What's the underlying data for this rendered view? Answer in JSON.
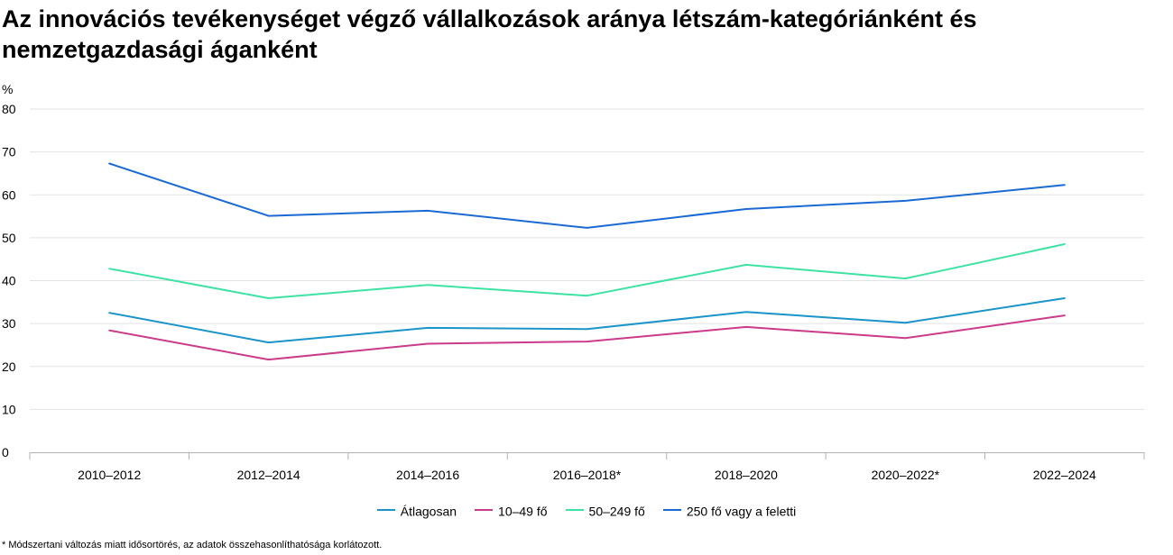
{
  "title": "Az innovációs tevékenységet végző vállalkozások aránya létszám-kategóriánként és nemzetgazdasági áganként",
  "footnote": "* Módszertani változás miatt idősortörés, az adatok összehasonlíthatósága korlátozott.",
  "chart_data": {
    "type": "line",
    "title": "Az innovációs tevékenységet végző vállalkozások aránya létszám-kategóriánként és nemzetgazdasági áganként",
    "xlabel": "",
    "ylabel": "%",
    "ylim": [
      0,
      80
    ],
    "yticks": [
      0,
      10,
      20,
      30,
      40,
      50,
      60,
      70,
      80
    ],
    "grid": true,
    "legend_position": "bottom",
    "categories": [
      "2010–2012",
      "2012–2014",
      "2014–2016",
      "2016–2018*",
      "2018–2020",
      "2020–2022*",
      "2022–2024"
    ],
    "series": [
      {
        "name": "Átlagosan",
        "color": "#1a94c9",
        "values": [
          32.5,
          25.6,
          29.0,
          28.7,
          32.7,
          30.2,
          35.9
        ]
      },
      {
        "name": "10–49 fő",
        "color": "#cc3a8a",
        "values": [
          28.4,
          21.6,
          25.3,
          25.8,
          29.2,
          26.6,
          31.9
        ]
      },
      {
        "name": "50–249 fő",
        "color": "#3ee3a4",
        "values": [
          42.8,
          35.9,
          39.0,
          36.5,
          43.7,
          40.5,
          48.5
        ]
      },
      {
        "name": "250 fő vagy a feletti",
        "color": "#1a6ad4",
        "values": [
          67.3,
          55.1,
          56.3,
          52.3,
          56.7,
          58.6,
          62.3
        ]
      }
    ]
  }
}
